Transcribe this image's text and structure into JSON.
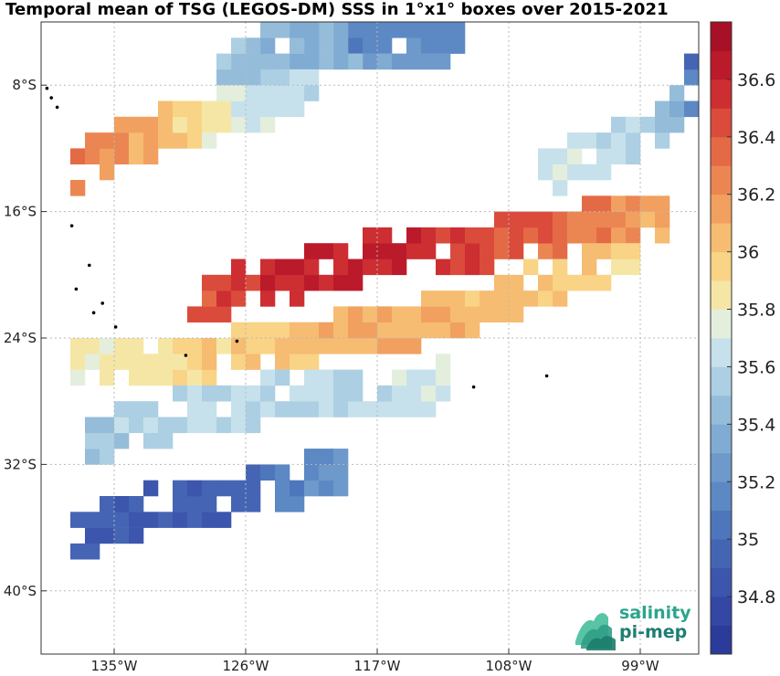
{
  "title": "Temporal mean of TSG (LEGOS-DM) SSS in 1°x1° boxes over 2015-2021",
  "map": {
    "lon_range": [
      -140,
      -95
    ],
    "lat_range": [
      -44,
      -4
    ],
    "lon_ticks": [
      {
        "value": -135,
        "label": "135°W"
      },
      {
        "value": -126,
        "label": "126°W"
      },
      {
        "value": -117,
        "label": "117°W"
      },
      {
        "value": -108,
        "label": "108°W"
      },
      {
        "value": -99,
        "label": "99°W"
      }
    ],
    "lat_ticks": [
      {
        "value": -8,
        "label": "8°S"
      },
      {
        "value": -16,
        "label": "16°S"
      },
      {
        "value": -24,
        "label": "24°S"
      },
      {
        "value": -32,
        "label": "32°S"
      },
      {
        "value": -40,
        "label": "40°S"
      }
    ],
    "grid": true
  },
  "colorbar": {
    "range": [
      34.6,
      36.8
    ],
    "step": 0.1,
    "ticks": [
      {
        "value": 34.8,
        "label": "34.8"
      },
      {
        "value": 35.0,
        "label": "35"
      },
      {
        "value": 35.2,
        "label": "35.2"
      },
      {
        "value": 35.4,
        "label": "35.4"
      },
      {
        "value": 35.6,
        "label": "35.6"
      },
      {
        "value": 35.8,
        "label": "35.8"
      },
      {
        "value": 36.0,
        "label": "36"
      },
      {
        "value": 36.2,
        "label": "36.2"
      },
      {
        "value": 36.4,
        "label": "36.4"
      },
      {
        "value": 36.6,
        "label": "36.6"
      }
    ],
    "colors": [
      "#2b3b9a",
      "#3447a5",
      "#3c55ad",
      "#4565b4",
      "#4e76bc",
      "#5c88c4",
      "#6d99cb",
      "#80abd2",
      "#95bdda",
      "#accfe3",
      "#c6e1eb",
      "#e4eedc",
      "#f6e6a6",
      "#f9d386",
      "#f6bc72",
      "#f1a060",
      "#eb8653",
      "#e46a46",
      "#da4b3b",
      "#cd2e32",
      "#bb1a2b",
      "#a71026"
    ]
  },
  "chart_data": {
    "type": "heatmap",
    "title": "Temporal mean of TSG (LEGOS-DM) SSS in 1°x1° boxes over 2015-2021",
    "xlabel": "",
    "ylabel": "",
    "xlim": [
      -140,
      -95
    ],
    "ylim": [
      -44,
      -4
    ],
    "colorbar_range": [
      34.6,
      36.8
    ],
    "cell_size_deg": 1,
    "bands": [
      {
        "name": "",
        "points": [
          [
            -119,
            -4.5,
            35.1
          ],
          [
            -112,
            -4.5,
            35.2
          ],
          [
            -128,
            -6.5,
            35.5
          ],
          [
            -122,
            -5.5,
            35.4
          ],
          [
            -113,
            -5.5,
            35.2
          ]
        ]
      },
      {
        "name": "",
        "points": [
          [
            -138,
            -13.5,
            36.3
          ],
          [
            -134,
            -11.5,
            36.1
          ],
          [
            -130,
            -10.5,
            35.9
          ],
          [
            -126,
            -9.5,
            35.7
          ],
          [
            -122,
            -8.0,
            35.6
          ]
        ]
      },
      {
        "name": "",
        "points": [
          [
            -130,
            -21.5,
            36.4
          ],
          [
            -124,
            -20.5,
            36.6
          ],
          [
            -118,
            -19.0,
            36.6
          ],
          [
            -112,
            -18.5,
            36.5
          ],
          [
            -104,
            -17.0,
            36.3
          ],
          [
            -98,
            -16.5,
            36.1
          ]
        ]
      },
      {
        "name": "",
        "points": [
          [
            -138,
            -26.0,
            35.8
          ],
          [
            -132,
            -25.5,
            35.9
          ],
          [
            -124,
            -24.5,
            36.0
          ],
          [
            -116,
            -23.5,
            36.1
          ],
          [
            -108,
            -21.5,
            36.0
          ],
          [
            -100,
            -18.5,
            35.9
          ]
        ]
      },
      {
        "name": "",
        "points": [
          [
            -137,
            -30.5,
            35.5
          ],
          [
            -131,
            -29.0,
            35.6
          ],
          [
            -125,
            -28.0,
            35.6
          ],
          [
            -119,
            -28.0,
            35.6
          ],
          [
            -113,
            -27.0,
            35.7
          ]
        ]
      },
      {
        "name": "",
        "points": [
          [
            -138,
            -36.5,
            34.9
          ],
          [
            -133,
            -35.0,
            34.9
          ],
          [
            -129,
            -34.5,
            34.9
          ],
          [
            -124,
            -33.5,
            35.1
          ],
          [
            -120,
            -32.5,
            35.2
          ]
        ]
      },
      {
        "name": "",
        "points": [
          [
            -106,
            -14.0,
            35.7
          ],
          [
            -101,
            -12.0,
            35.6
          ],
          [
            -97,
            -10.0,
            35.4
          ],
          [
            -95.5,
            -7.5,
            35.0
          ]
        ]
      }
    ]
  }
}
